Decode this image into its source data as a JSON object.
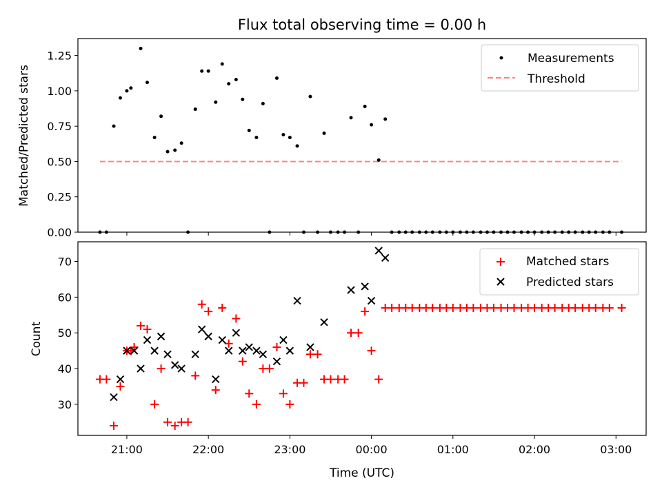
{
  "figure": {
    "title": "Flux total observing time = 0.00 h",
    "xlabel": "Time (UTC)",
    "xticks": [
      "21:00",
      "22:00",
      "23:00",
      "00:00",
      "01:00",
      "02:00",
      "03:00"
    ],
    "xtick_hours": [
      21,
      22,
      23,
      24,
      25,
      26,
      27
    ]
  },
  "chart_data": [
    {
      "type": "scatter",
      "panel": "top",
      "ylabel": "Matched/Predicted stars",
      "xlim_hours": [
        20.4,
        27.37
      ],
      "ylim": [
        0,
        1.37
      ],
      "yticks": [
        "0.00",
        "0.25",
        "0.50",
        "0.75",
        "1.00",
        "1.25"
      ],
      "ytick_values": [
        0,
        0.25,
        0.5,
        0.75,
        1.0,
        1.25
      ],
      "legend": "top-right",
      "threshold": {
        "name": "Threshold",
        "value": 0.5,
        "x_start": 20.67,
        "x_end": 27.07,
        "color": "#ff8080"
      },
      "series": [
        {
          "name": "Measurements",
          "color": "#000000",
          "x": [
            20.67,
            20.75,
            20.84,
            20.92,
            21.0,
            21.05,
            21.17,
            21.25,
            21.34,
            21.42,
            21.5,
            21.59,
            21.67,
            21.75,
            21.84,
            21.92,
            22.0,
            22.09,
            22.17,
            22.25,
            22.34,
            22.42,
            22.5,
            22.59,
            22.67,
            22.75,
            22.84,
            22.92,
            23.0,
            23.09,
            23.17,
            23.25,
            23.34,
            23.42,
            23.5,
            23.59,
            23.67,
            23.75,
            23.84,
            23.92,
            24.0,
            24.09,
            24.17,
            24.25,
            24.34,
            24.42,
            24.5,
            24.59,
            24.67,
            24.75,
            24.84,
            24.92,
            25.0,
            25.09,
            25.17,
            25.25,
            25.34,
            25.42,
            25.5,
            25.59,
            25.67,
            25.75,
            25.84,
            25.92,
            26.0,
            26.09,
            26.17,
            26.25,
            26.34,
            26.42,
            26.5,
            26.59,
            26.67,
            26.75,
            26.84,
            26.92,
            27.07
          ],
          "y": [
            0,
            0,
            0.75,
            0.95,
            1.0,
            1.02,
            1.3,
            1.06,
            0.67,
            0.82,
            0.57,
            0.58,
            0.63,
            0,
            0.87,
            1.14,
            1.14,
            0.92,
            1.19,
            1.05,
            1.08,
            0.94,
            0.72,
            0.67,
            0.91,
            0,
            1.09,
            0.69,
            0.67,
            0.61,
            0,
            0.96,
            0,
            0.7,
            0,
            0,
            0,
            0.81,
            0,
            0.89,
            0.76,
            0.51,
            0.8,
            0,
            0,
            0,
            0,
            0,
            0,
            0,
            0,
            0,
            0,
            0,
            0,
            0,
            0,
            0,
            0,
            0,
            0,
            0,
            0,
            0,
            0,
            0,
            0,
            0,
            0,
            0,
            0,
            0,
            0,
            0,
            0,
            0,
            0
          ]
        }
      ]
    },
    {
      "type": "scatter",
      "panel": "bottom",
      "ylabel": "Count",
      "xlim_hours": [
        20.4,
        27.37
      ],
      "ylim": [
        21.3,
        75.5
      ],
      "yticks": [
        "30",
        "40",
        "50",
        "60",
        "70"
      ],
      "ytick_values": [
        30,
        40,
        50,
        60,
        70
      ],
      "legend": "top-right",
      "series": [
        {
          "name": "Matched stars",
          "marker": "plus",
          "color": "#ff0000",
          "x": [
            20.67,
            20.75,
            20.84,
            20.92,
            21.0,
            21.05,
            21.09,
            21.17,
            21.25,
            21.34,
            21.42,
            21.5,
            21.59,
            21.67,
            21.75,
            21.84,
            21.92,
            22.0,
            22.09,
            22.17,
            22.25,
            22.34,
            22.42,
            22.5,
            22.59,
            22.67,
            22.75,
            22.84,
            22.92,
            23.0,
            23.09,
            23.17,
            23.25,
            23.34,
            23.42,
            23.5,
            23.59,
            23.67,
            23.75,
            23.84,
            23.92,
            24.0,
            24.09,
            24.17,
            24.25,
            24.34,
            24.42,
            24.5,
            24.59,
            24.67,
            24.75,
            24.84,
            24.92,
            25.0,
            25.09,
            25.17,
            25.25,
            25.34,
            25.42,
            25.5,
            25.59,
            25.67,
            25.75,
            25.84,
            25.92,
            26.0,
            26.09,
            26.17,
            26.25,
            26.34,
            26.42,
            26.5,
            26.59,
            26.67,
            26.75,
            26.84,
            26.92,
            27.07
          ],
          "y": [
            37,
            37,
            24,
            35,
            45,
            45,
            46,
            52,
            51,
            30,
            40,
            25,
            24,
            25,
            25,
            38,
            58,
            56,
            34,
            57,
            47,
            54,
            42,
            33,
            30,
            40,
            40,
            46,
            33,
            30,
            36,
            36,
            44,
            44,
            37,
            37,
            37,
            37,
            50,
            50,
            56,
            45,
            37,
            57,
            57,
            57,
            57,
            57,
            57,
            57,
            57,
            57,
            57,
            57,
            57,
            57,
            57,
            57,
            57,
            57,
            57,
            57,
            57,
            57,
            57,
            57,
            57,
            57,
            57,
            57,
            57,
            57,
            57,
            57,
            57,
            57,
            57,
            57
          ]
        },
        {
          "name": "Predicted stars",
          "marker": "x",
          "color": "#000000",
          "x": [
            20.84,
            20.92,
            21.0,
            21.09,
            21.17,
            21.25,
            21.34,
            21.42,
            21.5,
            21.59,
            21.67,
            21.84,
            21.92,
            22.0,
            22.09,
            22.17,
            22.25,
            22.34,
            22.42,
            22.5,
            22.59,
            22.67,
            22.84,
            22.92,
            23.0,
            23.09,
            23.25,
            23.42,
            23.75,
            23.92,
            24.0,
            24.09,
            24.17
          ],
          "y": [
            32,
            37,
            45,
            45,
            40,
            48,
            45,
            49,
            44,
            41,
            40,
            44,
            51,
            49,
            37,
            48,
            45,
            50,
            45,
            46,
            45,
            44,
            42,
            48,
            45,
            59,
            46,
            53,
            62,
            63,
            59,
            73,
            71
          ]
        }
      ]
    }
  ]
}
